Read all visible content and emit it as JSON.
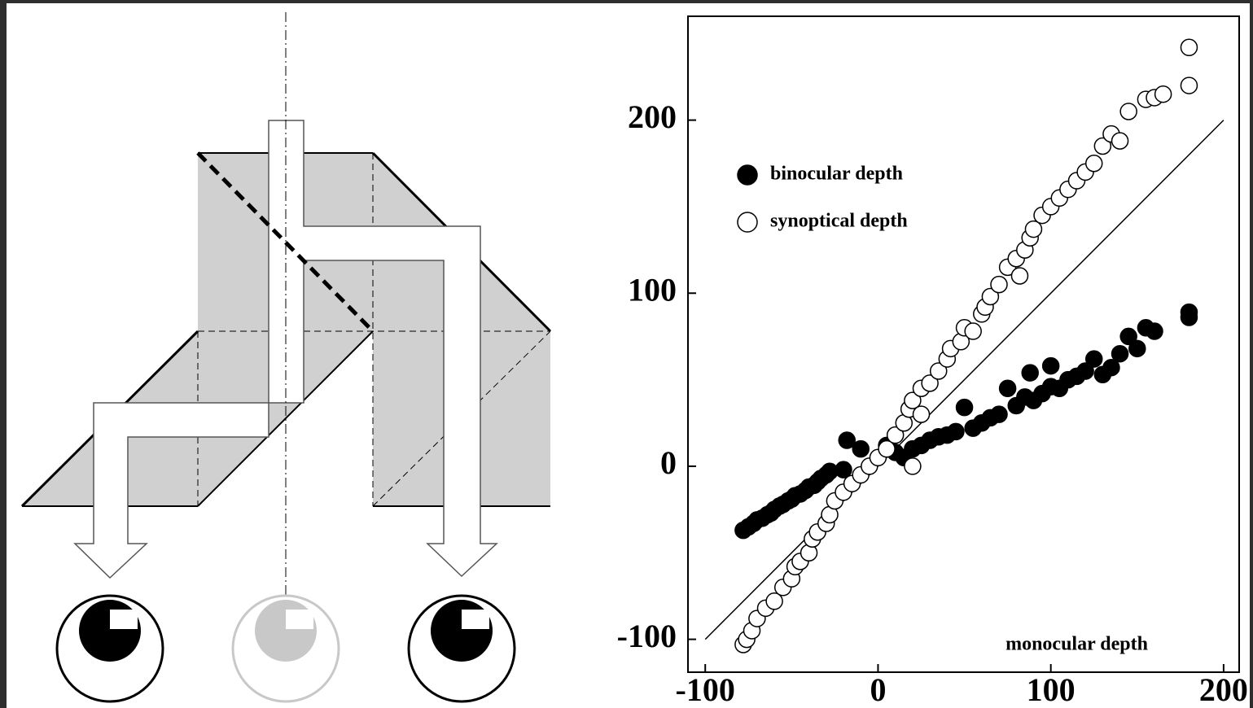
{
  "chart_data": {
    "type": "scatter",
    "xlim": [
      -110,
      209
    ],
    "ylim": [
      -119,
      260
    ],
    "xticks": [
      -100,
      0,
      100,
      200
    ],
    "yticks": [
      -100,
      0,
      100,
      200
    ],
    "x_label": "monocular depth",
    "reference_line": {
      "x": [
        -100,
        200
      ],
      "y": [
        -100,
        200
      ],
      "color": "#000000"
    },
    "series": [
      {
        "name": "binocular depth",
        "color": "#000000",
        "marker": "filled",
        "x": [
          -78,
          -75,
          -72,
          -70,
          -67,
          -64,
          -62,
          -60,
          -57,
          -55,
          -52,
          -50,
          -48,
          -45,
          -42,
          -40,
          -37,
          -35,
          -33,
          -30,
          -28,
          -20,
          -18,
          -10,
          5,
          10,
          15,
          20,
          25,
          30,
          35,
          40,
          45,
          50,
          55,
          60,
          65,
          70,
          75,
          80,
          85,
          88,
          90,
          95,
          100,
          100,
          105,
          110,
          115,
          120,
          125,
          130,
          135,
          140,
          145,
          150,
          155,
          160,
          180,
          180
        ],
        "values": [
          -37,
          -35,
          -33,
          -31,
          -30,
          -28,
          -27,
          -25,
          -23,
          -22,
          -20,
          -19,
          -17,
          -16,
          -14,
          -12,
          -11,
          -9,
          -7,
          -5,
          -3,
          -2,
          15,
          10,
          12,
          8,
          5,
          10,
          12,
          15,
          17,
          18,
          20,
          34,
          22,
          25,
          28,
          30,
          45,
          35,
          40,
          54,
          38,
          42,
          46,
          58,
          45,
          50,
          52,
          55,
          62,
          53,
          57,
          65,
          75,
          68,
          80,
          78,
          86,
          89
        ]
      },
      {
        "name": "synoptical depth",
        "color": "#000000",
        "marker": "open",
        "x": [
          -78,
          -76,
          -73,
          -70,
          -65,
          -60,
          -55,
          -50,
          -48,
          -45,
          -40,
          -38,
          -35,
          -30,
          -28,
          -25,
          -20,
          -15,
          -10,
          -5,
          0,
          5,
          10,
          15,
          18,
          20,
          25,
          25,
          30,
          20,
          35,
          40,
          42,
          48,
          50,
          55,
          60,
          62,
          65,
          70,
          75,
          80,
          82,
          85,
          88,
          90,
          95,
          100,
          105,
          110,
          115,
          120,
          125,
          130,
          135,
          140,
          145,
          155,
          160,
          165,
          180,
          180
        ],
        "values": [
          -103,
          -100,
          -95,
          -88,
          -82,
          -78,
          -70,
          -65,
          -58,
          -55,
          -50,
          -42,
          -38,
          -33,
          -28,
          -20,
          -15,
          -10,
          -5,
          0,
          5,
          10,
          18,
          25,
          33,
          38,
          45,
          30,
          48,
          0,
          55,
          62,
          68,
          72,
          80,
          78,
          88,
          92,
          98,
          105,
          115,
          120,
          110,
          125,
          132,
          137,
          145,
          150,
          155,
          160,
          165,
          170,
          175,
          185,
          192,
          188,
          205,
          212,
          213,
          215,
          220,
          242
        ]
      }
    ]
  }
}
